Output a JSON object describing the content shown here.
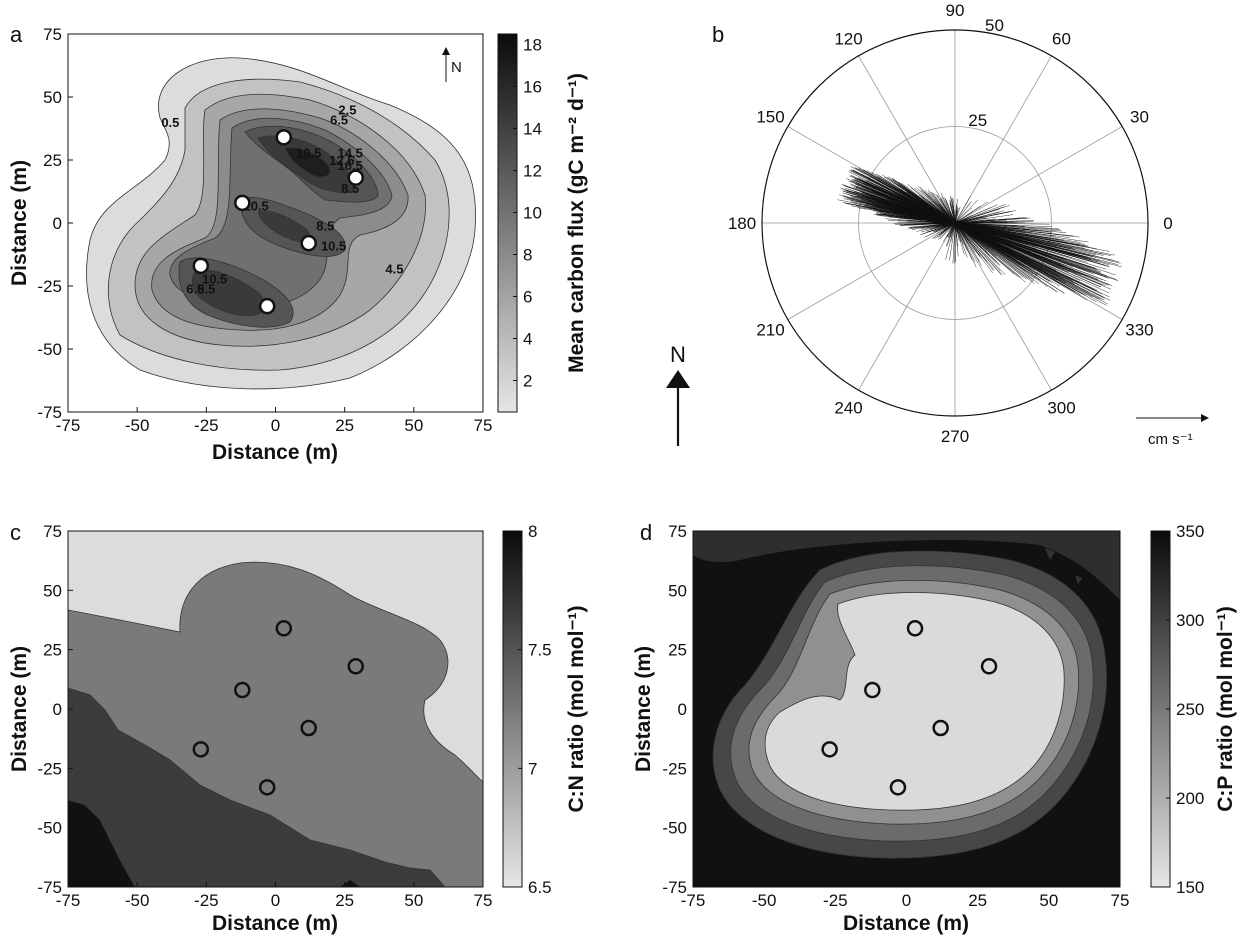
{
  "chart_data": [
    {
      "panel": "a",
      "type": "heatmap",
      "subtype": "filled-contour",
      "xlabel": "Distance (m)",
      "ylabel": "Distance (m)",
      "xlim": [
        -75,
        75
      ],
      "ylim": [
        -75,
        75
      ],
      "xticks": [
        "-75",
        "-50",
        "-25",
        "0",
        "25",
        "50",
        "75"
      ],
      "yticks": [
        "-75",
        "-50",
        "-25",
        "0",
        "25",
        "50",
        "75"
      ],
      "colorbar": {
        "label": "Mean carbon flux (gC m⁻² d⁻¹)",
        "range": [
          0.5,
          18.5
        ],
        "ticks": [
          "2",
          "4",
          "6",
          "8",
          "10",
          "12",
          "14",
          "16",
          "18"
        ]
      },
      "north_arrow": "N",
      "contour_labels": [
        {
          "text": "0.5",
          "x": -38,
          "y": 38
        },
        {
          "text": "2.5",
          "x": 26,
          "y": 43
        },
        {
          "text": "6.5",
          "x": 23,
          "y": 39
        },
        {
          "text": "10.5",
          "x": 12,
          "y": 26
        },
        {
          "text": "12.5",
          "x": 24,
          "y": 23
        },
        {
          "text": "14.5",
          "x": 27,
          "y": 26
        },
        {
          "text": "16.5",
          "x": 27,
          "y": 21
        },
        {
          "text": "8.5",
          "x": 27,
          "y": 12
        },
        {
          "text": "10.5",
          "x": -7,
          "y": 5
        },
        {
          "text": "8.5",
          "x": 18,
          "y": -3
        },
        {
          "text": "10.5",
          "x": 21,
          "y": -11
        },
        {
          "text": "4.5",
          "x": 43,
          "y": -20
        },
        {
          "text": "10.5",
          "x": -22,
          "y": -24
        },
        {
          "text": "6.5",
          "x": -29,
          "y": -28
        },
        {
          "text": "8.5",
          "x": -25,
          "y": -28
        }
      ],
      "stations": [
        {
          "x": 3,
          "y": 34
        },
        {
          "x": 29,
          "y": 18
        },
        {
          "x": -12,
          "y": 8
        },
        {
          "x": 12,
          "y": -8
        },
        {
          "x": -27,
          "y": -17
        },
        {
          "x": -3,
          "y": -33
        }
      ]
    },
    {
      "panel": "b",
      "type": "scatter",
      "subtype": "polar-feather-plot",
      "angle_labels": [
        "0",
        "30",
        "60",
        "90",
        "120",
        "150",
        "180",
        "210",
        "240",
        "270",
        "300",
        "330"
      ],
      "radial_labels": [
        "25",
        "50"
      ],
      "rmax": 50,
      "unit_label": "cm s⁻¹",
      "north_arrow": "N",
      "dominant_axis_deg": [
        160,
        340
      ]
    },
    {
      "panel": "c",
      "type": "heatmap",
      "subtype": "filled-contour",
      "xlabel": "Distance (m)",
      "ylabel": "Distance (m)",
      "xlim": [
        -75,
        75
      ],
      "ylim": [
        -75,
        75
      ],
      "xticks": [
        "-75",
        "-50",
        "-25",
        "0",
        "25",
        "50",
        "75"
      ],
      "yticks": [
        "-75",
        "-50",
        "-25",
        "0",
        "25",
        "50",
        "75"
      ],
      "colorbar": {
        "label": "C:N ratio (mol mol⁻¹)",
        "range": [
          6.5,
          8
        ],
        "ticks": [
          "6.5",
          "7",
          "7.5",
          "8"
        ]
      },
      "stations": [
        {
          "x": 3,
          "y": 34
        },
        {
          "x": 29,
          "y": 18
        },
        {
          "x": -12,
          "y": 8
        },
        {
          "x": 12,
          "y": -8
        },
        {
          "x": -27,
          "y": -17
        },
        {
          "x": -3,
          "y": -33
        }
      ]
    },
    {
      "panel": "d",
      "type": "heatmap",
      "subtype": "filled-contour",
      "xlabel": "Distance (m)",
      "ylabel": "Distance (m)",
      "xlim": [
        -75,
        75
      ],
      "ylim": [
        -75,
        75
      ],
      "xticks": [
        "-75",
        "-50",
        "-25",
        "0",
        "25",
        "50",
        "75"
      ],
      "yticks": [
        "-75",
        "-50",
        "-25",
        "0",
        "25",
        "50",
        "75"
      ],
      "colorbar": {
        "label": "C:P ratio (mol mol⁻¹)",
        "range": [
          150,
          350
        ],
        "ticks": [
          "150",
          "200",
          "250",
          "300",
          "350"
        ]
      },
      "stations": [
        {
          "x": 3,
          "y": 34
        },
        {
          "x": 29,
          "y": 18
        },
        {
          "x": -12,
          "y": 8
        },
        {
          "x": 12,
          "y": -8
        },
        {
          "x": -27,
          "y": -17
        },
        {
          "x": -3,
          "y": -33
        }
      ]
    }
  ]
}
